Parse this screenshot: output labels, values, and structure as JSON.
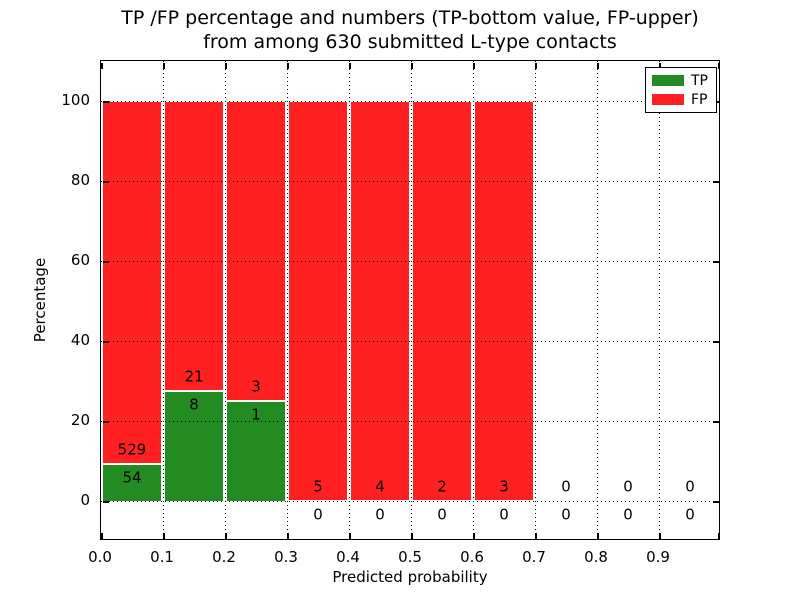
{
  "figure": {
    "title_line1": "TP /FP percentage and numbers (TP-bottom value, FP-upper)",
    "title_line2": "from among 630 submitted L-type contacts",
    "xlabel": "Predicted probability",
    "ylabel": "Percentage"
  },
  "legend": {
    "items": [
      {
        "label": "TP",
        "color": "#228B22"
      },
      {
        "label": "FP",
        "color": "#FF2121"
      }
    ]
  },
  "chart_data": {
    "type": "bar",
    "stacked": true,
    "title": "TP /FP percentage and numbers (TP-bottom value, FP-upper) from among 630 submitted L-type contacts",
    "xlabel": "Predicted probability",
    "ylabel": "Percentage",
    "xlim": [
      0.0,
      1.0
    ],
    "ylim": [
      -10,
      110
    ],
    "x_tick_labels": [
      "0.0",
      "0.1",
      "0.2",
      "0.3",
      "0.4",
      "0.5",
      "0.6",
      "0.7",
      "0.8",
      "0.9"
    ],
    "y_tick_values": [
      0,
      20,
      40,
      60,
      80,
      100
    ],
    "grid": "dotted",
    "legend_position": "upper right",
    "total_contacts": 630,
    "colors": {
      "tp": "#228B22",
      "fp": "#FF2121",
      "bar_edge": "#ffffff"
    },
    "bins": [
      {
        "x_start": 0.0,
        "x_end": 0.1,
        "tp_count": 54,
        "fp_count": 529,
        "tp_pct": 9.26,
        "fp_pct": 90.74,
        "has_bar": true
      },
      {
        "x_start": 0.1,
        "x_end": 0.2,
        "tp_count": 8,
        "fp_count": 21,
        "tp_pct": 27.59,
        "fp_pct": 72.41,
        "has_bar": true
      },
      {
        "x_start": 0.2,
        "x_end": 0.3,
        "tp_count": 1,
        "fp_count": 3,
        "tp_pct": 25.0,
        "fp_pct": 75.0,
        "has_bar": true
      },
      {
        "x_start": 0.3,
        "x_end": 0.4,
        "tp_count": 0,
        "fp_count": 5,
        "tp_pct": 0.0,
        "fp_pct": 100.0,
        "has_bar": true
      },
      {
        "x_start": 0.4,
        "x_end": 0.5,
        "tp_count": 0,
        "fp_count": 4,
        "tp_pct": 0.0,
        "fp_pct": 100.0,
        "has_bar": true
      },
      {
        "x_start": 0.5,
        "x_end": 0.6,
        "tp_count": 0,
        "fp_count": 2,
        "tp_pct": 0.0,
        "fp_pct": 100.0,
        "has_bar": true
      },
      {
        "x_start": 0.6,
        "x_end": 0.7,
        "tp_count": 0,
        "fp_count": 3,
        "tp_pct": 0.0,
        "fp_pct": 100.0,
        "has_bar": true
      },
      {
        "x_start": 0.7,
        "x_end": 0.8,
        "tp_count": 0,
        "fp_count": 0,
        "tp_pct": null,
        "fp_pct": null,
        "has_bar": false
      },
      {
        "x_start": 0.8,
        "x_end": 0.9,
        "tp_count": 0,
        "fp_count": 0,
        "tp_pct": null,
        "fp_pct": null,
        "has_bar": false
      },
      {
        "x_start": 0.9,
        "x_end": 1.0,
        "tp_count": 0,
        "fp_count": 0,
        "tp_pct": null,
        "fp_pct": null,
        "has_bar": false
      }
    ],
    "series": [
      {
        "name": "TP",
        "color": "#228B22",
        "counts": [
          54,
          8,
          1,
          0,
          0,
          0,
          0,
          0,
          0,
          0
        ],
        "values_pct": [
          9.26,
          27.59,
          25.0,
          0,
          0,
          0,
          0,
          null,
          null,
          null
        ]
      },
      {
        "name": "FP",
        "color": "#FF2121",
        "counts": [
          529,
          21,
          3,
          5,
          4,
          2,
          3,
          0,
          0,
          0
        ],
        "values_pct": [
          90.74,
          72.41,
          75.0,
          100,
          100,
          100,
          100,
          null,
          null,
          null
        ]
      }
    ]
  }
}
